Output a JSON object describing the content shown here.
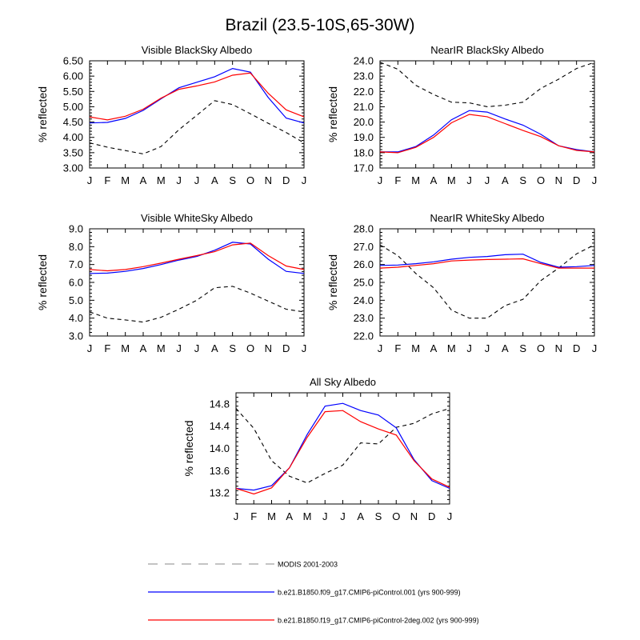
{
  "figure": {
    "title": "Brazil (23.5-10S,65-30W)"
  },
  "legend": [
    {
      "label": "MODIS 2001-2003",
      "color": "#000000",
      "dash": true
    },
    {
      "label": "b.e21.B1850.f09_g17.CMIP6-piControl.001 (yrs 900-999)",
      "color": "#0000ff",
      "dash": false
    },
    {
      "label": "b.e21.B1850.f19_g17.CMIP6-piControl-2deg.002 (yrs 900-999)",
      "color": "#ff0000",
      "dash": false
    }
  ],
  "chart_data": [
    {
      "type": "line",
      "title": "Visible BlackSky Albedo",
      "ylabel": "% reflected",
      "xlabel": "",
      "categories": [
        "J",
        "F",
        "M",
        "A",
        "M",
        "J",
        "J",
        "A",
        "S",
        "O",
        "N",
        "D",
        "J"
      ],
      "ylim": [
        3.0,
        6.5
      ],
      "yticks": [
        "3.00",
        "3.50",
        "4.00",
        "4.50",
        "5.00",
        "5.50",
        "6.00",
        "6.50"
      ],
      "series": [
        {
          "name": "MODIS 2001-2003",
          "values": [
            3.82,
            3.68,
            3.57,
            3.46,
            3.7,
            4.25,
            4.72,
            5.2,
            5.07,
            4.77,
            4.46,
            4.16,
            3.82
          ]
        },
        {
          "name": "b.e21.B1850.f09_g17.CMIP6-piControl.001 (yrs 900-999)",
          "values": [
            4.47,
            4.49,
            4.62,
            4.88,
            5.26,
            5.62,
            5.8,
            5.98,
            6.25,
            6.13,
            5.3,
            4.63,
            4.47
          ]
        },
        {
          "name": "b.e21.B1850.f19_g17.CMIP6-piControl-2deg.002 (yrs 900-999)",
          "values": [
            4.67,
            4.57,
            4.69,
            4.92,
            5.28,
            5.57,
            5.68,
            5.81,
            6.03,
            6.1,
            5.44,
            4.9,
            4.67
          ]
        }
      ]
    },
    {
      "type": "line",
      "title": "NearIR BlackSky Albedo",
      "ylabel": "% reflected",
      "xlabel": "",
      "categories": [
        "J",
        "F",
        "M",
        "A",
        "M",
        "J",
        "J",
        "A",
        "S",
        "O",
        "N",
        "D",
        "J"
      ],
      "ylim": [
        17.0,
        24.0
      ],
      "yticks": [
        "17.0",
        "18.0",
        "19.0",
        "20.0",
        "21.0",
        "22.0",
        "23.0",
        "24.0"
      ],
      "series": [
        {
          "name": "MODIS 2001-2003",
          "values": [
            23.9,
            23.45,
            22.4,
            21.8,
            21.3,
            21.25,
            21.0,
            21.1,
            21.3,
            22.2,
            22.8,
            23.5,
            23.9
          ]
        },
        {
          "name": "b.e21.B1850.f09_g17.CMIP6-piControl.001 (yrs 900-999)",
          "values": [
            18.05,
            18.05,
            18.4,
            19.15,
            20.15,
            20.75,
            20.65,
            20.2,
            19.8,
            19.2,
            18.45,
            18.2,
            18.05
          ]
        },
        {
          "name": "b.e21.B1850.f19_g17.CMIP6-piControl-2deg.002 (yrs 900-999)",
          "values": [
            18.05,
            18.0,
            18.35,
            19.0,
            19.95,
            20.5,
            20.35,
            19.9,
            19.45,
            19.05,
            18.45,
            18.15,
            18.05
          ]
        }
      ]
    },
    {
      "type": "line",
      "title": "Visible WhiteSky Albedo",
      "ylabel": "% reflected",
      "xlabel": "",
      "categories": [
        "J",
        "F",
        "M",
        "A",
        "M",
        "J",
        "J",
        "A",
        "S",
        "O",
        "N",
        "D",
        "J"
      ],
      "ylim": [
        3.0,
        9.0
      ],
      "yticks": [
        "3.0",
        "4.0",
        "5.0",
        "6.0",
        "7.0",
        "8.0",
        "9.0"
      ],
      "series": [
        {
          "name": "MODIS 2001-2003",
          "values": [
            4.35,
            4.0,
            3.9,
            3.78,
            4.05,
            4.5,
            5.0,
            5.7,
            5.78,
            5.4,
            4.95,
            4.5,
            4.35
          ]
        },
        {
          "name": "b.e21.B1850.f09_g17.CMIP6-piControl.001 (yrs 900-999)",
          "values": [
            6.5,
            6.52,
            6.62,
            6.78,
            7.0,
            7.25,
            7.45,
            7.8,
            8.25,
            8.15,
            7.3,
            6.62,
            6.5
          ]
        },
        {
          "name": "b.e21.B1850.f19_g17.CMIP6-piControl-2deg.002 (yrs 900-999)",
          "values": [
            6.72,
            6.65,
            6.72,
            6.88,
            7.08,
            7.3,
            7.5,
            7.72,
            8.1,
            8.2,
            7.5,
            6.92,
            6.72
          ]
        }
      ]
    },
    {
      "type": "line",
      "title": "NearIR WhiteSky Albedo",
      "ylabel": "% reflected",
      "xlabel": "",
      "categories": [
        "J",
        "F",
        "M",
        "A",
        "M",
        "J",
        "J",
        "A",
        "S",
        "O",
        "N",
        "D",
        "J"
      ],
      "ylim": [
        22.0,
        28.0
      ],
      "yticks": [
        "22.0",
        "23.0",
        "24.0",
        "25.0",
        "26.0",
        "27.0",
        "28.0"
      ],
      "series": [
        {
          "name": "MODIS 2001-2003",
          "values": [
            27.1,
            26.5,
            25.5,
            24.7,
            23.45,
            23.0,
            23.0,
            23.7,
            24.05,
            25.1,
            25.8,
            26.6,
            27.1
          ]
        },
        {
          "name": "b.e21.B1850.f09_g17.CMIP6-piControl.001 (yrs 900-999)",
          "values": [
            25.95,
            25.97,
            26.05,
            26.15,
            26.3,
            26.4,
            26.45,
            26.55,
            26.58,
            26.12,
            25.85,
            25.88,
            25.95
          ]
        },
        {
          "name": "b.e21.B1850.f19_g17.CMIP6-piControl-2deg.002 (yrs 900-999)",
          "values": [
            25.8,
            25.85,
            25.95,
            26.05,
            26.2,
            26.25,
            26.28,
            26.3,
            26.32,
            26.05,
            25.8,
            25.8,
            25.8
          ]
        }
      ]
    },
    {
      "type": "line",
      "title": "All Sky Albedo",
      "ylabel": "% reflected",
      "xlabel": "",
      "categories": [
        "J",
        "F",
        "M",
        "A",
        "M",
        "J",
        "J",
        "A",
        "S",
        "O",
        "N",
        "D",
        "J"
      ],
      "ylim": [
        13.0,
        15.0
      ],
      "yticks": [
        "13.2",
        "13.6",
        "14.0",
        "14.4",
        "14.8"
      ],
      "series": [
        {
          "name": "MODIS 2001-2003",
          "values": [
            14.72,
            14.36,
            13.78,
            13.5,
            13.38,
            13.55,
            13.7,
            14.1,
            14.08,
            14.38,
            14.45,
            14.62,
            14.72
          ]
        },
        {
          "name": "b.e21.B1850.f09_g17.CMIP6-piControl.001 (yrs 900-999)",
          "values": [
            13.28,
            13.25,
            13.33,
            13.65,
            14.25,
            14.76,
            14.81,
            14.68,
            14.6,
            14.37,
            13.8,
            13.42,
            13.28
          ]
        },
        {
          "name": "b.e21.B1850.f19_g17.CMIP6-piControl-2deg.002 (yrs 900-999)",
          "values": [
            13.28,
            13.18,
            13.29,
            13.65,
            14.2,
            14.66,
            14.68,
            14.48,
            14.35,
            14.24,
            13.78,
            13.45,
            13.3
          ]
        }
      ]
    }
  ]
}
